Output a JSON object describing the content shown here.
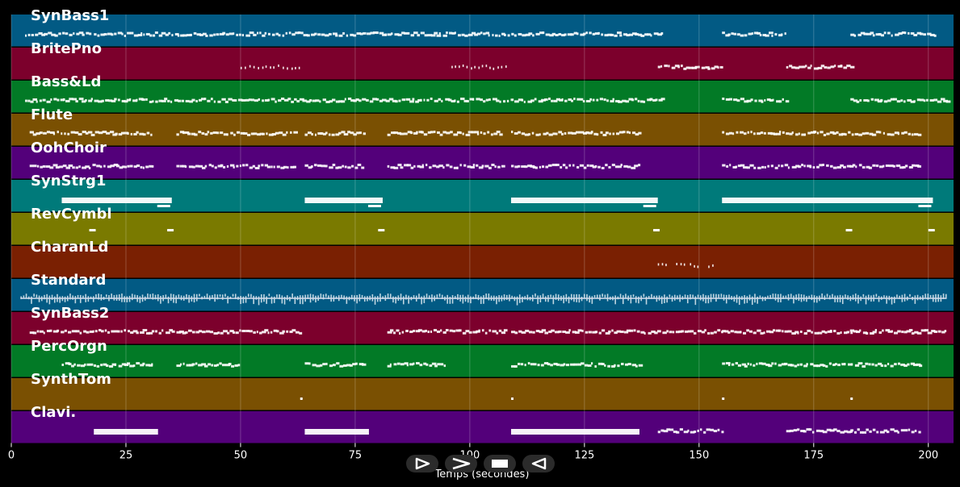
{
  "chart_data": {
    "type": "piano-roll",
    "xlabel": "Temps (secondes)",
    "xlim": [
      0,
      205.5
    ],
    "x_ticks": [
      0,
      25,
      50,
      75,
      100,
      125,
      150,
      175,
      200
    ],
    "grid": true,
    "tracks": [
      {
        "name": "SynBass1",
        "color": "#025a84",
        "segments": [
          [
            3,
            17,
            "dense"
          ],
          [
            18,
            142,
            "dense"
          ],
          [
            155,
            169,
            "dense"
          ],
          [
            183,
            202,
            "dense"
          ]
        ]
      },
      {
        "name": "BritePno",
        "color": "#7c002c",
        "segments": [
          [
            50,
            63,
            "sparse"
          ],
          [
            96,
            108,
            "sparse"
          ],
          [
            141,
            155,
            "dense"
          ],
          [
            169,
            183,
            "dense"
          ]
        ]
      },
      {
        "name": "Bass&Ld",
        "color": "#027a26",
        "segments": [
          [
            3,
            142,
            "dense"
          ],
          [
            155,
            169,
            "dense"
          ],
          [
            183,
            204,
            "dense"
          ]
        ]
      },
      {
        "name": "Flute",
        "color": "#7a5002",
        "segments": [
          [
            4,
            31,
            "dense"
          ],
          [
            36,
            62,
            "dense"
          ],
          [
            64,
            77,
            "dense"
          ],
          [
            82,
            107,
            "dense"
          ],
          [
            109,
            137,
            "dense"
          ],
          [
            155,
            198,
            "dense"
          ]
        ]
      },
      {
        "name": "OohChoir",
        "color": "#53007a",
        "segments": [
          [
            4,
            31,
            "dense"
          ],
          [
            36,
            62,
            "dense"
          ],
          [
            64,
            77,
            "dense"
          ],
          [
            82,
            107,
            "dense"
          ],
          [
            109,
            137,
            "dense"
          ],
          [
            155,
            198,
            "dense"
          ]
        ]
      },
      {
        "name": "SynStrg1",
        "color": "#007a7a",
        "segments": [
          [
            11,
            35,
            "block"
          ],
          [
            64,
            81,
            "block"
          ],
          [
            109,
            141,
            "block"
          ],
          [
            155,
            201,
            "block"
          ]
        ]
      },
      {
        "name": "RevCymbl",
        "color": "#7a7a00",
        "segments": [
          [
            17,
            18,
            "dash"
          ],
          [
            34,
            35,
            "dash"
          ],
          [
            80,
            81,
            "dash"
          ],
          [
            140,
            141,
            "dash"
          ],
          [
            182,
            183,
            "dash"
          ],
          [
            200,
            201,
            "dash"
          ]
        ]
      },
      {
        "name": "CharanLd",
        "color": "#7a2002",
        "segments": [
          [
            141,
            143,
            "sparse"
          ],
          [
            145,
            147,
            "sparse"
          ],
          [
            148,
            150,
            "sparse"
          ],
          [
            152,
            153,
            "sparse"
          ]
        ]
      },
      {
        "name": "Standard",
        "color": "#025a84",
        "segments": [
          [
            2,
            204,
            "drum"
          ]
        ]
      },
      {
        "name": "SynBass2",
        "color": "#7c002c",
        "segments": [
          [
            4,
            35,
            "dense"
          ],
          [
            36,
            63,
            "dense"
          ],
          [
            82,
            108,
            "dense"
          ],
          [
            109,
            141,
            "dense"
          ],
          [
            142,
            155,
            "dense"
          ],
          [
            155,
            183,
            "dense"
          ],
          [
            183,
            204,
            "dense"
          ]
        ]
      },
      {
        "name": "PercOrgn",
        "color": "#027a26",
        "segments": [
          [
            11,
            31,
            "dense"
          ],
          [
            36,
            50,
            "dense"
          ],
          [
            64,
            77,
            "dense"
          ],
          [
            82,
            95,
            "dense"
          ],
          [
            109,
            137,
            "dense"
          ],
          [
            155,
            198,
            "dense"
          ]
        ]
      },
      {
        "name": "SynthTom",
        "color": "#7a5002",
        "segments": [
          [
            63,
            64,
            "dot"
          ],
          [
            109,
            110,
            "dot"
          ],
          [
            155,
            156,
            "dot"
          ],
          [
            183,
            184,
            "dot"
          ]
        ]
      },
      {
        "name": "Clavi.",
        "color": "#53007a",
        "segments": [
          [
            18,
            32,
            "block"
          ],
          [
            64,
            78,
            "block"
          ],
          [
            109,
            137,
            "block"
          ],
          [
            141,
            155,
            "dense"
          ],
          [
            169,
            183,
            "dense"
          ],
          [
            183,
            198,
            "dense"
          ]
        ]
      }
    ]
  },
  "controls": [
    {
      "name": "play-icon"
    },
    {
      "name": "fast-forward-icon"
    },
    {
      "name": "stop-icon"
    },
    {
      "name": "rewind-icon"
    }
  ]
}
